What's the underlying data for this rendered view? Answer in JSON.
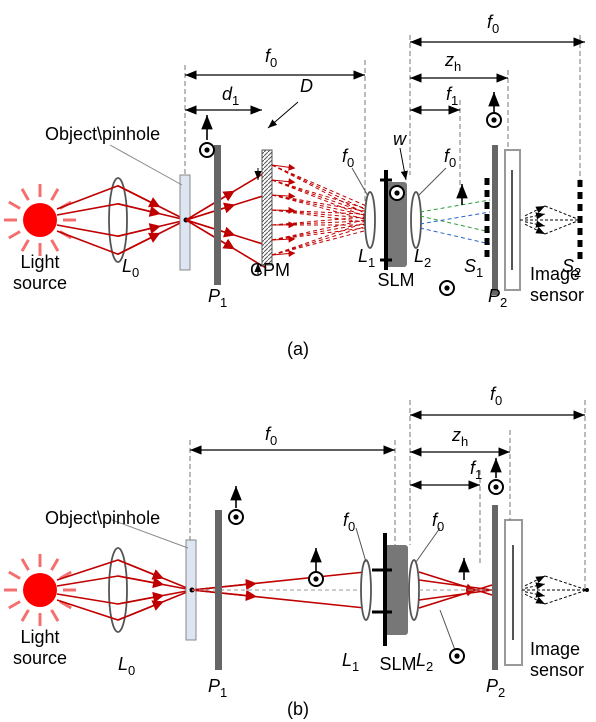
{
  "panel_a": {
    "caption": "(a)",
    "f0_top": {
      "symbol": "f",
      "subscript": "0"
    },
    "z_h": {
      "symbol": "z",
      "subscript": "h"
    },
    "f1": {
      "symbol": "f",
      "subscript": "1"
    },
    "f0_mid": {
      "symbol": "f",
      "subscript": "0"
    },
    "d1": {
      "symbol": "d",
      "subscript": "1"
    },
    "D": "D",
    "object_label": "Object\\pinhole",
    "f0_lens1": {
      "symbol": "f",
      "subscript": "0"
    },
    "w": "w",
    "f0_lens2": {
      "symbol": "f",
      "subscript": "0"
    },
    "L0": {
      "symbol": "L",
      "subscript": "0"
    },
    "light_source": [
      "Light",
      "source"
    ],
    "P1": {
      "symbol": "P",
      "subscript": "1"
    },
    "CPM": "CPM",
    "L1": {
      "symbol": "L",
      "subscript": "1"
    },
    "L2": {
      "symbol": "L",
      "subscript": "2"
    },
    "SLM": "SLM",
    "S1": {
      "symbol": "S",
      "subscript": "1"
    },
    "P2": {
      "symbol": "P",
      "subscript": "2"
    },
    "S2": {
      "symbol": "S",
      "subscript": "2"
    },
    "image_sensor": [
      "Image",
      "sensor"
    ]
  },
  "panel_b": {
    "caption": "(b)",
    "f0_top": {
      "symbol": "f",
      "subscript": "0"
    },
    "z_h": {
      "symbol": "z",
      "subscript": "h"
    },
    "f1": {
      "symbol": "f",
      "subscript": "1"
    },
    "f0_mid": {
      "symbol": "f",
      "subscript": "0"
    },
    "object_label": "Object\\pinhole",
    "f0_lens1": {
      "symbol": "f",
      "subscript": "0"
    },
    "f0_lens2": {
      "symbol": "f",
      "subscript": "0"
    },
    "L0": {
      "symbol": "L",
      "subscript": "0"
    },
    "light_source": [
      "Light",
      "source"
    ],
    "P1": {
      "symbol": "P",
      "subscript": "1"
    },
    "L1": {
      "symbol": "L",
      "subscript": "1"
    },
    "L2": {
      "symbol": "L",
      "subscript": "2"
    },
    "SLM": "SLM",
    "P2": {
      "symbol": "P",
      "subscript": "2"
    },
    "image_sensor": [
      "Image",
      "sensor"
    ]
  }
}
